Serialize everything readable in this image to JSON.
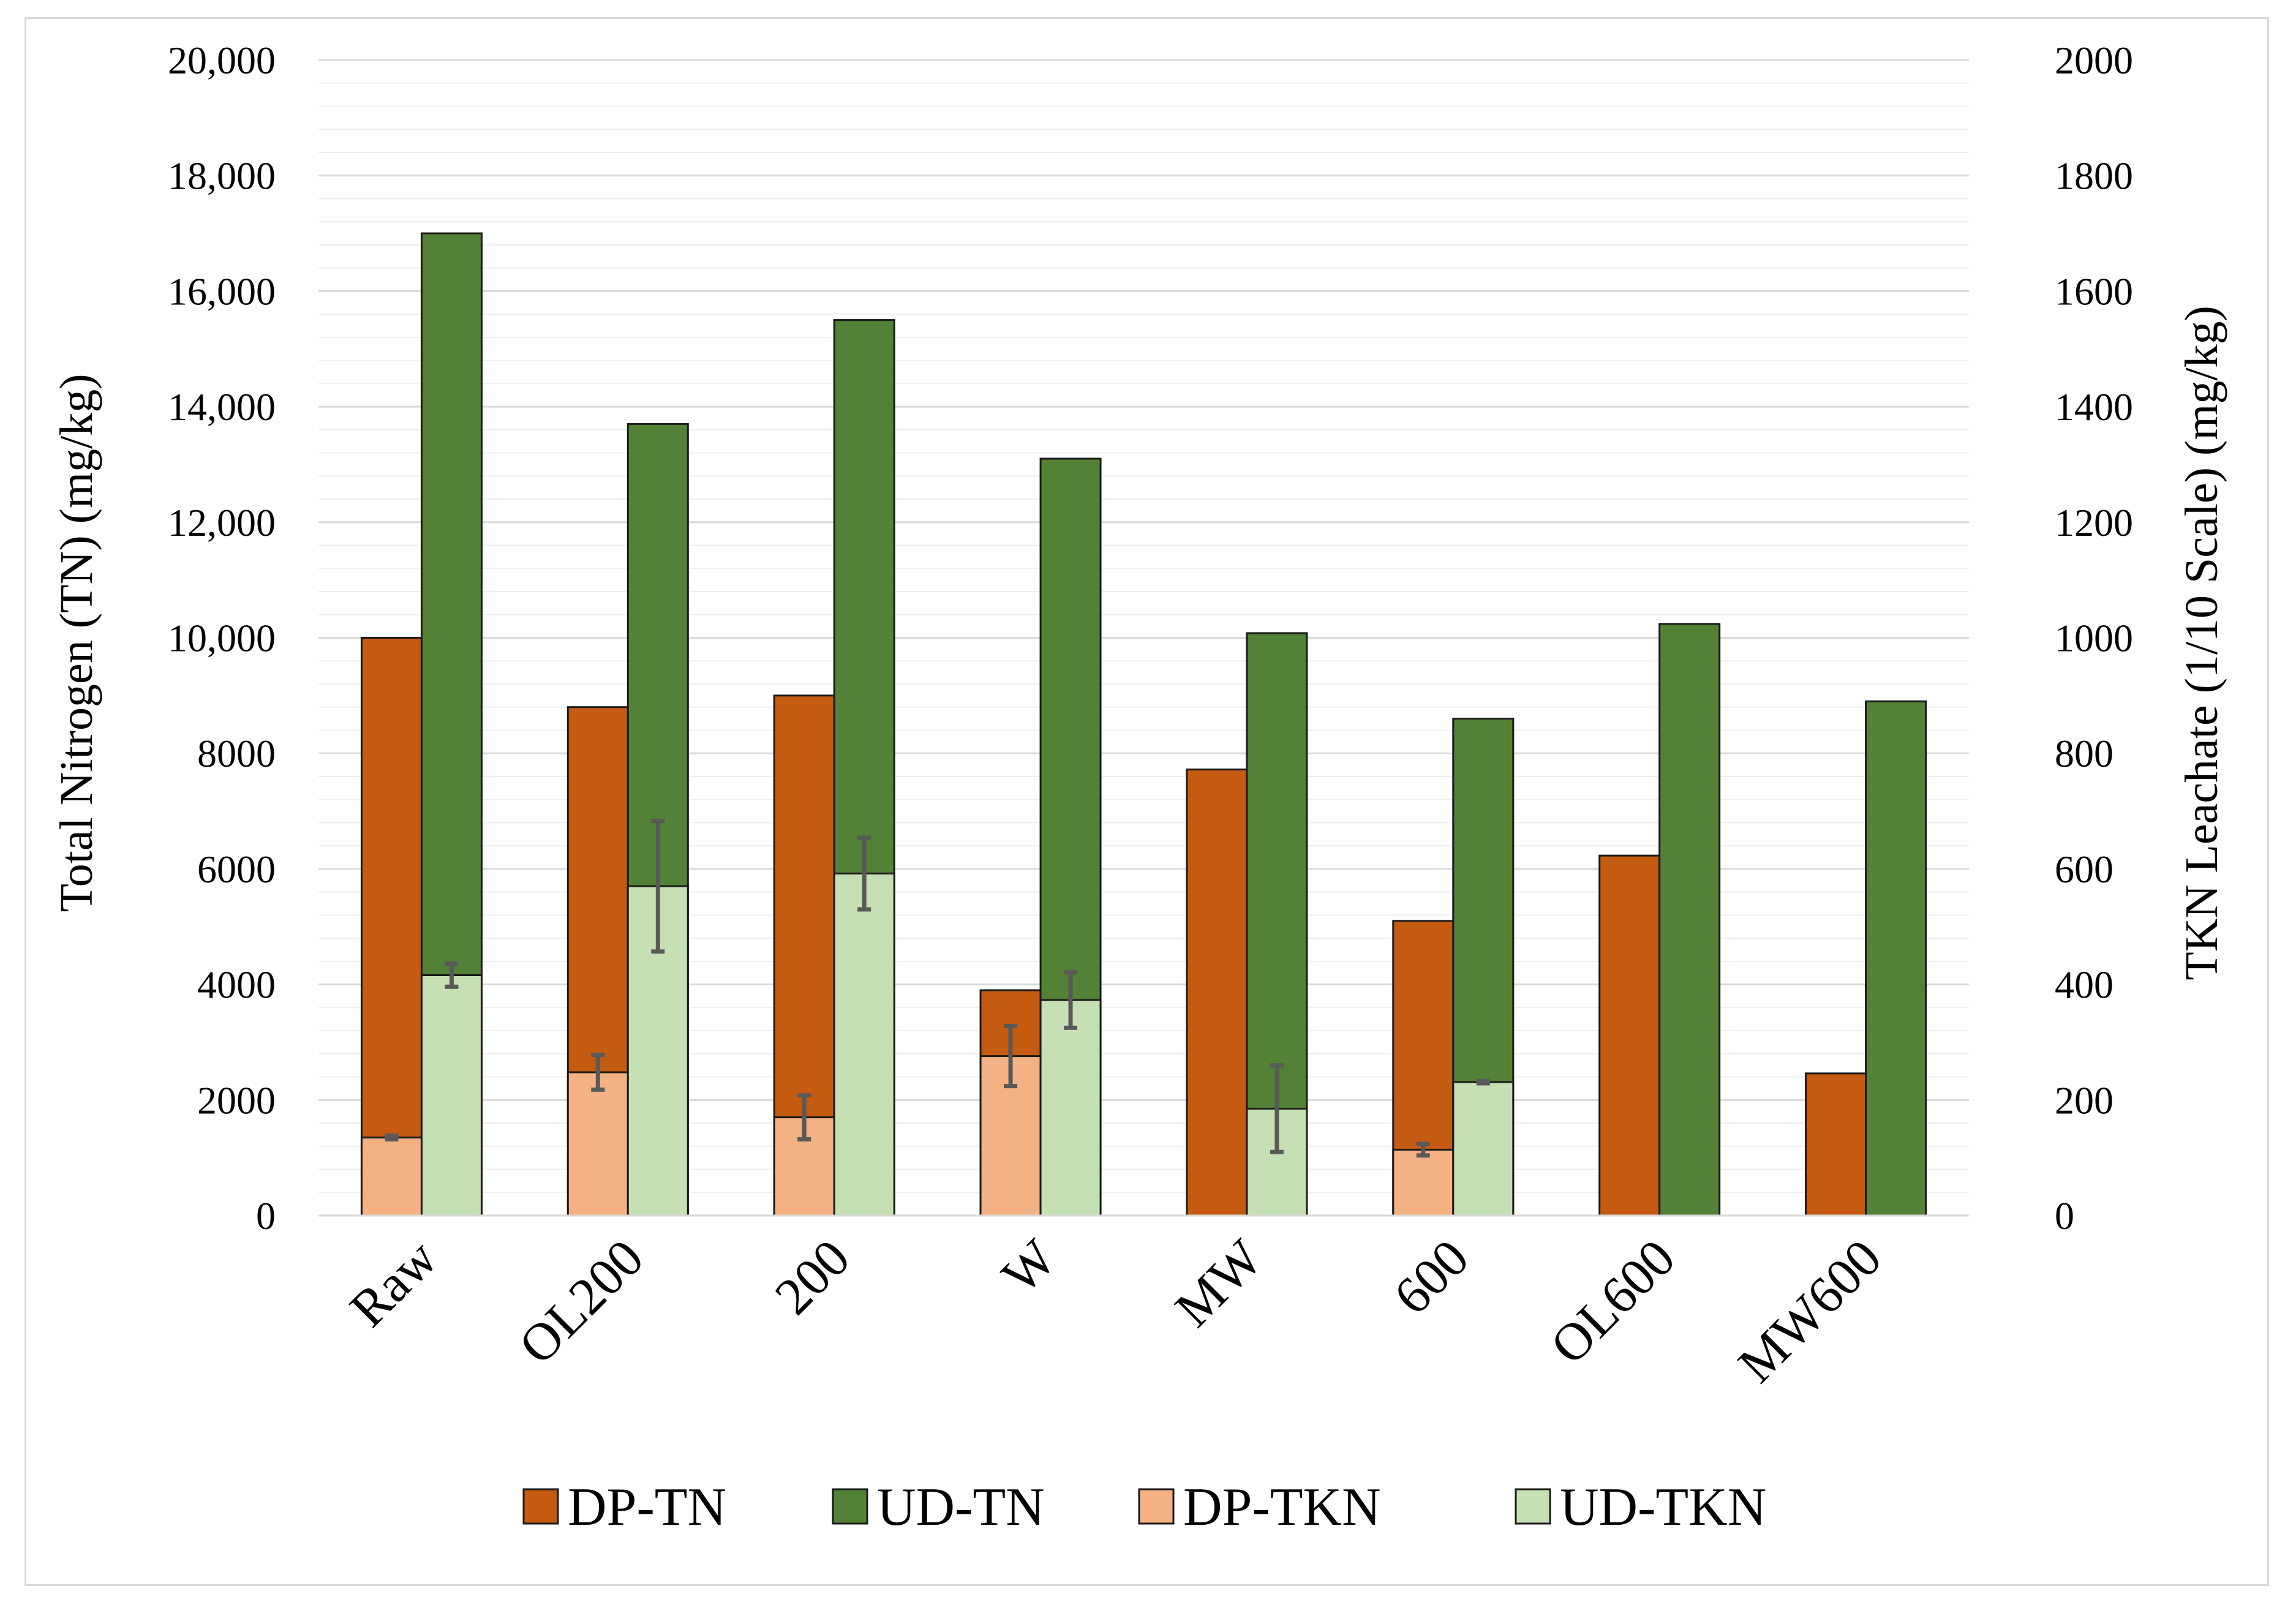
{
  "chart_data": {
    "type": "bar",
    "title": "",
    "categories": [
      "Raw",
      "OL200",
      "200",
      "W",
      "MW",
      "600",
      "OL600",
      "MW600"
    ],
    "y_left": {
      "label": "Total Nitrogen (TN) (mg/kg)",
      "range": [
        0,
        20000
      ],
      "ticks": [
        0,
        2000,
        4000,
        6000,
        8000,
        10000,
        12000,
        14000,
        16000,
        18000,
        20000
      ],
      "tick_labels": [
        "0",
        "2000",
        "4000",
        "6000",
        "8000",
        "10,000",
        "12,000",
        "14,000",
        "16,000",
        "18,000",
        "20,000"
      ]
    },
    "y_right": {
      "label": "TKN Leachate (1/10 Scale) (mg/kg)",
      "range": [
        0,
        2000
      ],
      "ticks": [
        0,
        200,
        400,
        600,
        800,
        1000,
        1200,
        1400,
        1600,
        1800,
        2000
      ],
      "tick_labels": [
        "0",
        "200",
        "400",
        "600",
        "800",
        "1000",
        "1200",
        "1400",
        "1600",
        "1800",
        "2000"
      ]
    },
    "gridlines": "horizontal, major and minor",
    "legend_position": "bottom",
    "series": [
      {
        "name": "DP-TN",
        "axis": "left",
        "color": "#c55a11",
        "values": [
          10000,
          8800,
          9000,
          3900,
          7720,
          5100,
          6230,
          2460
        ]
      },
      {
        "name": "UD-TN",
        "axis": "left",
        "color": "#538135",
        "values": [
          17000,
          13700,
          15500,
          13100,
          10080,
          8600,
          10240,
          8900
        ]
      },
      {
        "name": "DP-TKN",
        "axis": "right",
        "color": "#f4b183",
        "values": [
          135,
          248,
          170,
          276,
          0,
          114,
          0,
          0
        ],
        "error": [
          3,
          30,
          38,
          52,
          0,
          10,
          0,
          0
        ]
      },
      {
        "name": "UD-TKN",
        "axis": "right",
        "color": "#c5e0b4",
        "values": [
          416,
          570,
          592,
          373,
          185,
          231,
          0,
          0
        ],
        "error": [
          20,
          113,
          62,
          48,
          75,
          2,
          0,
          0
        ]
      }
    ]
  }
}
